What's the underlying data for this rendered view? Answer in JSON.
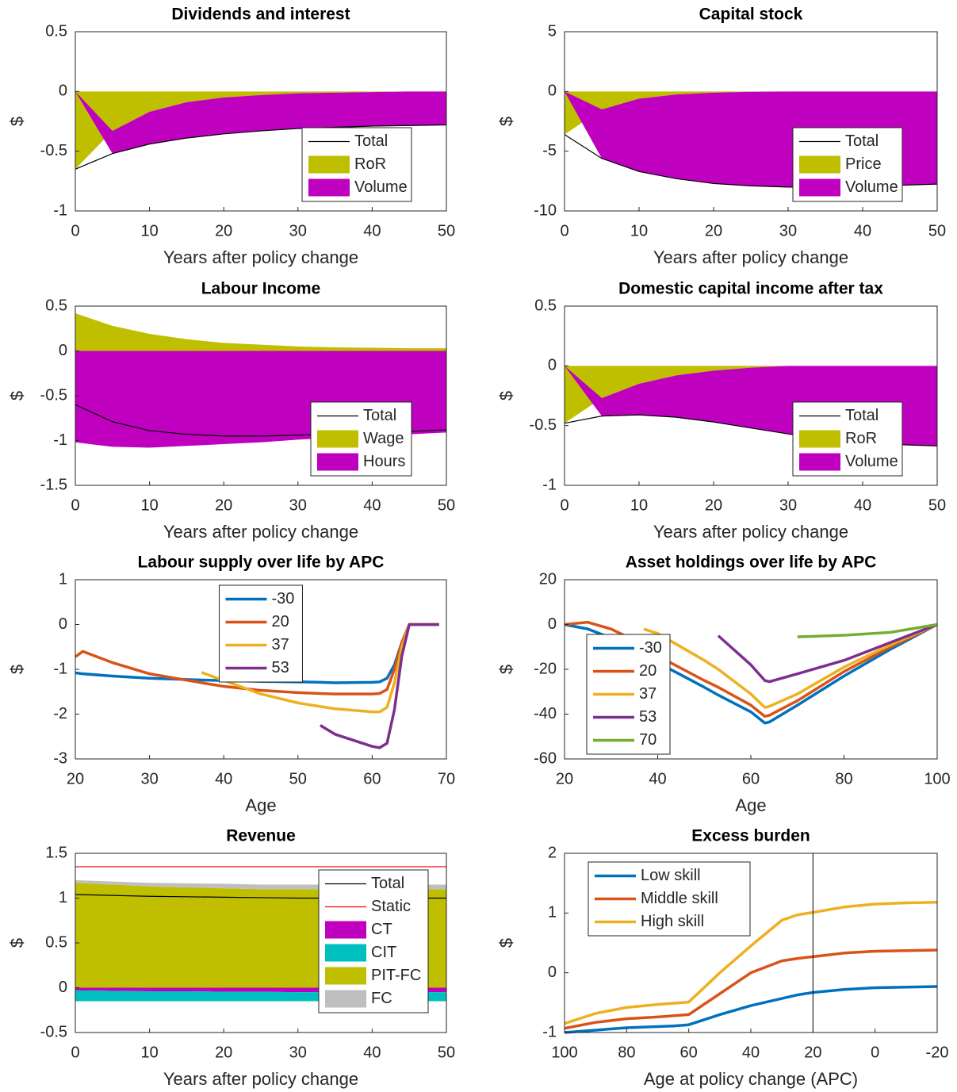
{
  "chart_data": [
    {
      "type": "area",
      "title": "Dividends and interest",
      "xlabel": "Years after policy change",
      "ylabel": "$",
      "x": [
        0,
        5,
        10,
        15,
        20,
        25,
        30,
        35,
        40,
        45,
        50
      ],
      "xlim": [
        0,
        50
      ],
      "xticks": [
        0,
        10,
        20,
        30,
        40,
        50
      ],
      "ylim": [
        -1,
        0.5
      ],
      "yticks": [
        -1,
        -0.5,
        0,
        0.5
      ],
      "legend": "southeast",
      "series": [
        {
          "name": "Total",
          "style": "line",
          "color": "#000000",
          "values": [
            -0.65,
            -0.52,
            -0.44,
            -0.39,
            -0.355,
            -0.33,
            -0.31,
            -0.3,
            -0.29,
            -0.285,
            -0.28
          ]
        },
        {
          "name": "RoR",
          "style": "area",
          "color": "#bfbf00",
          "values": [
            -0.65,
            -0.33,
            -0.17,
            -0.09,
            -0.05,
            -0.03,
            -0.015,
            -0.01,
            -0.005,
            0,
            0
          ]
        },
        {
          "name": "Volume",
          "style": "area",
          "color": "#bf00bf",
          "values": [
            0,
            -0.19,
            -0.27,
            -0.3,
            -0.305,
            -0.3,
            -0.295,
            -0.29,
            -0.285,
            -0.285,
            -0.28
          ]
        }
      ]
    },
    {
      "type": "area",
      "title": "Capital stock",
      "xlabel": "Years after policy change",
      "ylabel": "$",
      "x": [
        0,
        5,
        10,
        15,
        20,
        25,
        30,
        35,
        40,
        45,
        50
      ],
      "xlim": [
        0,
        50
      ],
      "xticks": [
        0,
        10,
        20,
        30,
        40,
        50
      ],
      "ylim": [
        -10,
        5
      ],
      "yticks": [
        -10,
        -5,
        0,
        5
      ],
      "legend": "southeast",
      "series": [
        {
          "name": "Total",
          "style": "line",
          "color": "#000000",
          "values": [
            -3.6,
            -5.6,
            -6.7,
            -7.3,
            -7.7,
            -7.9,
            -8,
            -8,
            -7.95,
            -7.85,
            -7.75
          ]
        },
        {
          "name": "Price",
          "style": "area",
          "color": "#bfbf00",
          "values": [
            -3.6,
            -1.5,
            -0.6,
            -0.25,
            -0.1,
            -0.03,
            0,
            0,
            0,
            0,
            0
          ]
        },
        {
          "name": "Volume",
          "style": "area",
          "color": "#bf00bf",
          "values": [
            0,
            -4.1,
            -6.1,
            -7.05,
            -7.6,
            -7.87,
            -8,
            -8,
            -7.95,
            -7.85,
            -7.75
          ]
        }
      ]
    },
    {
      "type": "area",
      "title": "Labour Income",
      "xlabel": "Years after policy change",
      "ylabel": "$",
      "x": [
        0,
        5,
        10,
        15,
        20,
        25,
        30,
        35,
        40,
        45,
        50
      ],
      "xlim": [
        0,
        50
      ],
      "xticks": [
        0,
        10,
        20,
        30,
        40,
        50
      ],
      "ylim": [
        -1.5,
        0.5
      ],
      "yticks": [
        -1.5,
        -1,
        -0.5,
        0,
        0.5
      ],
      "legend": "southeast",
      "series": [
        {
          "name": "Total",
          "style": "line",
          "color": "#000000",
          "values": [
            -0.6,
            -0.79,
            -0.89,
            -0.93,
            -0.95,
            -0.95,
            -0.94,
            -0.93,
            -0.91,
            -0.9,
            -0.88
          ]
        },
        {
          "name": "Wage",
          "style": "area",
          "color": "#bfbf00",
          "values": [
            0.42,
            0.28,
            0.19,
            0.13,
            0.09,
            0.07,
            0.05,
            0.04,
            0.035,
            0.03,
            0.03
          ]
        },
        {
          "name": "Hours",
          "style": "area",
          "color": "#bf00bf",
          "values": [
            -1.02,
            -1.07,
            -1.08,
            -1.06,
            -1.04,
            -1.02,
            -0.99,
            -0.97,
            -0.945,
            -0.93,
            -0.91
          ]
        }
      ]
    },
    {
      "type": "area",
      "title": "Domestic capital income after tax",
      "xlabel": "Years after policy change",
      "ylabel": "$",
      "x": [
        0,
        5,
        10,
        15,
        20,
        25,
        30,
        35,
        40,
        45,
        50
      ],
      "xlim": [
        0,
        50
      ],
      "xticks": [
        0,
        10,
        20,
        30,
        40,
        50
      ],
      "ylim": [
        -1,
        0.5
      ],
      "yticks": [
        -1,
        -0.5,
        0,
        0.5
      ],
      "legend": "southeast",
      "series": [
        {
          "name": "Total",
          "style": "line",
          "color": "#000000",
          "values": [
            -0.48,
            -0.42,
            -0.41,
            -0.43,
            -0.47,
            -0.52,
            -0.57,
            -0.61,
            -0.64,
            -0.66,
            -0.67
          ]
        },
        {
          "name": "RoR",
          "style": "area",
          "color": "#bfbf00",
          "values": [
            -0.48,
            -0.27,
            -0.15,
            -0.08,
            -0.04,
            -0.015,
            0,
            0,
            0,
            0,
            0
          ]
        },
        {
          "name": "Volume",
          "style": "area",
          "color": "#bf00bf",
          "values": [
            0,
            -0.15,
            -0.26,
            -0.35,
            -0.43,
            -0.505,
            -0.57,
            -0.61,
            -0.64,
            -0.66,
            -0.67
          ]
        }
      ]
    },
    {
      "type": "line",
      "title": "Labour supply over life by APC",
      "xlabel": "Age",
      "ylabel": "$",
      "x": [
        20,
        21,
        25,
        30,
        37,
        40,
        45,
        50,
        53,
        55,
        60,
        61,
        62,
        63,
        64,
        65,
        69
      ],
      "xlim": [
        20,
        70
      ],
      "xticks": [
        20,
        30,
        40,
        50,
        60,
        70
      ],
      "ylim": [
        -3,
        1
      ],
      "yticks": [
        -3,
        -2,
        -1,
        0,
        1
      ],
      "legend": "north",
      "series": [
        {
          "name": "-30",
          "color": "#0072bd",
          "values": [
            -1.08,
            -1.1,
            -1.15,
            -1.2,
            -1.24,
            -1.25,
            -1.27,
            -1.28,
            -1.29,
            -1.3,
            -1.29,
            -1.28,
            -1.2,
            -0.9,
            -0.4,
            0,
            0
          ]
        },
        {
          "name": "20",
          "color": "#d95319",
          "values": [
            -0.72,
            -0.6,
            -0.85,
            -1.1,
            -1.3,
            -1.38,
            -1.47,
            -1.52,
            -1.54,
            -1.55,
            -1.55,
            -1.54,
            -1.45,
            -1,
            -0.4,
            0,
            0
          ]
        },
        {
          "name": "37",
          "color": "#edb120",
          "values": [
            null,
            null,
            null,
            null,
            -1.07,
            -1.25,
            -1.55,
            -1.75,
            -1.83,
            -1.88,
            -1.95,
            -1.95,
            -1.85,
            -1.3,
            -0.5,
            0,
            0
          ]
        },
        {
          "name": "53",
          "color": "#7e2f8e",
          "values": [
            null,
            null,
            null,
            null,
            null,
            null,
            null,
            null,
            -2.25,
            -2.45,
            -2.72,
            -2.75,
            -2.65,
            -1.9,
            -0.7,
            0,
            0
          ]
        }
      ]
    },
    {
      "type": "line",
      "title": "Asset holdings over life by APC",
      "xlabel": "Age",
      "ylabel": "$",
      "x": [
        20,
        25,
        30,
        35,
        37,
        40,
        50,
        53,
        60,
        63,
        64,
        70,
        80,
        90,
        100
      ],
      "xlim": [
        20,
        100
      ],
      "xticks": [
        20,
        40,
        60,
        80,
        100
      ],
      "ylim": [
        -60,
        20
      ],
      "yticks": [
        -60,
        -40,
        -20,
        0,
        20
      ],
      "legend": "southwest",
      "series": [
        {
          "name": "-30",
          "color": "#0072bd",
          "values": [
            0,
            -2,
            -6,
            -12,
            -14.5,
            -17,
            -28,
            -31.5,
            -39,
            -44,
            -43.5,
            -36,
            -23,
            -11,
            0
          ]
        },
        {
          "name": "20",
          "color": "#d95319",
          "values": [
            0,
            1,
            -2,
            -7,
            -11,
            -14,
            -25,
            -28,
            -36,
            -41,
            -40.5,
            -34,
            -21,
            -10,
            0
          ]
        },
        {
          "name": "37",
          "color": "#edb120",
          "values": [
            null,
            null,
            null,
            null,
            -2,
            -4,
            -16,
            -20,
            -31,
            -37,
            -36.5,
            -31,
            -19,
            -9,
            0
          ]
        },
        {
          "name": "53",
          "color": "#7e2f8e",
          "values": [
            null,
            null,
            null,
            null,
            null,
            null,
            null,
            -5,
            -18,
            -25,
            -25.5,
            -22,
            -16,
            -8,
            0
          ]
        },
        {
          "name": "70",
          "color": "#77ac30",
          "values": [
            null,
            null,
            null,
            null,
            null,
            null,
            null,
            null,
            null,
            null,
            null,
            -5.5,
            -4.8,
            -3.5,
            0
          ]
        }
      ]
    },
    {
      "type": "area",
      "title": "Revenue",
      "xlabel": "Years after policy change",
      "ylabel": "$",
      "x": [
        0,
        5,
        10,
        15,
        20,
        25,
        30,
        35,
        40,
        45,
        50
      ],
      "xlim": [
        0,
        50
      ],
      "xticks": [
        0,
        10,
        20,
        30,
        40,
        50
      ],
      "ylim": [
        -0.5,
        1.5
      ],
      "yticks": [
        -0.5,
        0,
        0.5,
        1,
        1.5
      ],
      "legend": "northeast",
      "series": [
        {
          "name": "Total",
          "style": "line",
          "color": "#000000",
          "values": [
            1.04,
            1.03,
            1.02,
            1.015,
            1.01,
            1.005,
            1,
            1,
            1,
            1,
            1
          ]
        },
        {
          "name": "Static",
          "style": "line",
          "color": "#ff0000",
          "values": [
            1.35,
            1.35,
            1.35,
            1.35,
            1.35,
            1.35,
            1.35,
            1.35,
            1.35,
            1.35,
            1.35
          ]
        },
        {
          "name": "CT",
          "style": "area",
          "color": "#bf00bf",
          "values": [
            -0.03,
            -0.035,
            -0.04,
            -0.04,
            -0.045,
            -0.045,
            -0.05,
            -0.05,
            -0.05,
            -0.05,
            -0.05
          ]
        },
        {
          "name": "CIT",
          "style": "area",
          "color": "#00bfbf",
          "values": [
            -0.12,
            -0.115,
            -0.11,
            -0.11,
            -0.105,
            -0.105,
            -0.1,
            -0.1,
            -0.1,
            -0.1,
            -0.1
          ]
        },
        {
          "name": "PIT-FC",
          "style": "area",
          "color": "#bfbf00",
          "values": [
            1.17,
            1.15,
            1.13,
            1.12,
            1.11,
            1.1,
            1.1,
            1.1,
            1.1,
            1.1,
            1.1
          ]
        },
        {
          "name": "FC",
          "style": "area",
          "color": "#bfbfbf",
          "values": [
            0.03,
            0.035,
            0.04,
            0.045,
            0.05,
            0.05,
            0.05,
            0.05,
            0.05,
            0.05,
            0.05
          ]
        }
      ]
    },
    {
      "type": "line",
      "title": "Excess burden",
      "xlabel": "Age at policy change (APC)",
      "ylabel": "$",
      "x": [
        100,
        90,
        80,
        70,
        65,
        60,
        50,
        40,
        30,
        25,
        20,
        10,
        0,
        -10,
        -20
      ],
      "xlim": [
        100,
        -20
      ],
      "xticks": [
        100,
        80,
        60,
        40,
        20,
        0,
        -20
      ],
      "ylim": [
        -1,
        2
      ],
      "yticks": [
        -1,
        0,
        1,
        2
      ],
      "legend": "northwest",
      "vline": 20,
      "series": [
        {
          "name": "Low skill",
          "color": "#0072bd",
          "values": [
            -1,
            -0.96,
            -0.92,
            -0.9,
            -0.89,
            -0.87,
            -0.7,
            -0.55,
            -0.43,
            -0.37,
            -0.33,
            -0.28,
            -0.25,
            -0.24,
            -0.23
          ]
        },
        {
          "name": "Middle skill",
          "color": "#d95319",
          "values": [
            -0.93,
            -0.83,
            -0.77,
            -0.74,
            -0.72,
            -0.7,
            -0.35,
            0,
            0.2,
            0.24,
            0.27,
            0.33,
            0.36,
            0.37,
            0.38
          ]
        },
        {
          "name": "High skill",
          "color": "#edb120",
          "values": [
            -0.85,
            -0.68,
            -0.58,
            -0.53,
            -0.51,
            -0.49,
            0,
            0.45,
            0.88,
            0.97,
            1.01,
            1.1,
            1.15,
            1.17,
            1.18
          ]
        }
      ]
    }
  ]
}
